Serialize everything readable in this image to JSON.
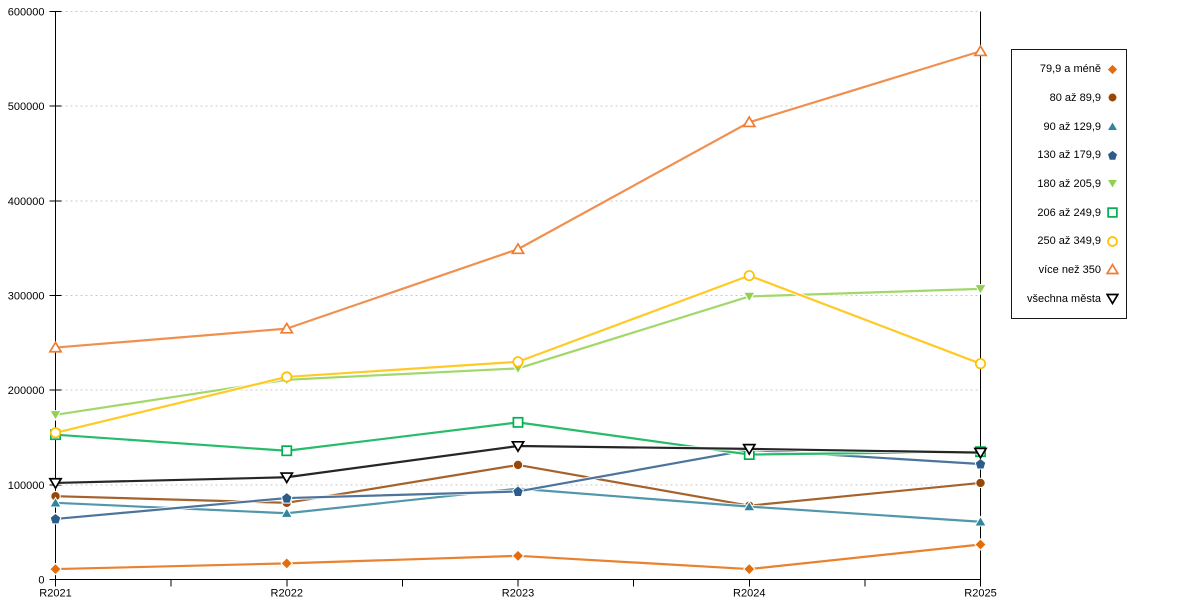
{
  "chart_data": {
    "type": "line",
    "title": "",
    "xlabel": "",
    "ylabel": "",
    "x_categories": [
      "R2021",
      "R2022",
      "R2023",
      "R2024",
      "R2025"
    ],
    "y_axis": {
      "min": 0,
      "max": 600000,
      "step": 100000,
      "tick_labels": [
        "0",
        "100000",
        "200000",
        "300000",
        "400000",
        "500000",
        "600000"
      ]
    },
    "grid": {
      "horizontal": "dashed",
      "color": "#c9c9c9"
    },
    "legend": {
      "position": "right",
      "border_color": "#1a1a1a"
    },
    "series": [
      {
        "name": "79,9 a méně",
        "marker": "diamond-filled",
        "color": "#E46C0A",
        "values": [
          11000,
          17000,
          25000,
          11000,
          37000
        ]
      },
      {
        "name": "80 až 89,9",
        "marker": "circle-filled",
        "color": "#974706",
        "values": [
          88000,
          81000,
          121000,
          78000,
          102000
        ]
      },
      {
        "name": "90 až 129,9",
        "marker": "triangle-up-filled",
        "color": "#31859C",
        "values": [
          81000,
          70000,
          96000,
          77000,
          61000
        ]
      },
      {
        "name": "130 až 179,9",
        "marker": "pentagon-filled",
        "color": "#2E5C8A",
        "values": [
          64000,
          86000,
          93000,
          137000,
          122000
        ]
      },
      {
        "name": "180 až 205,9",
        "marker": "triangle-down-filled",
        "color": "#92D050",
        "values": [
          174000,
          211000,
          223000,
          299000,
          307000
        ]
      },
      {
        "name": "206 až 249,9",
        "marker": "square-hollow",
        "color": "#00B050",
        "values": [
          153000,
          136000,
          166000,
          132000,
          135000
        ]
      },
      {
        "name": "250 až 349,9",
        "marker": "circle-hollow",
        "color": "#FFC000",
        "values": [
          155000,
          214000,
          230000,
          321000,
          228000
        ]
      },
      {
        "name": "více než 350",
        "marker": "triangle-up-hollow",
        "color": "#ED7D31",
        "values": [
          245000,
          265000,
          349000,
          483000,
          558000
        ]
      },
      {
        "name": "všechna města",
        "marker": "triangle-down-hollow",
        "color": "#000000",
        "values": [
          102000,
          108000,
          141000,
          138000,
          134000
        ]
      }
    ]
  }
}
